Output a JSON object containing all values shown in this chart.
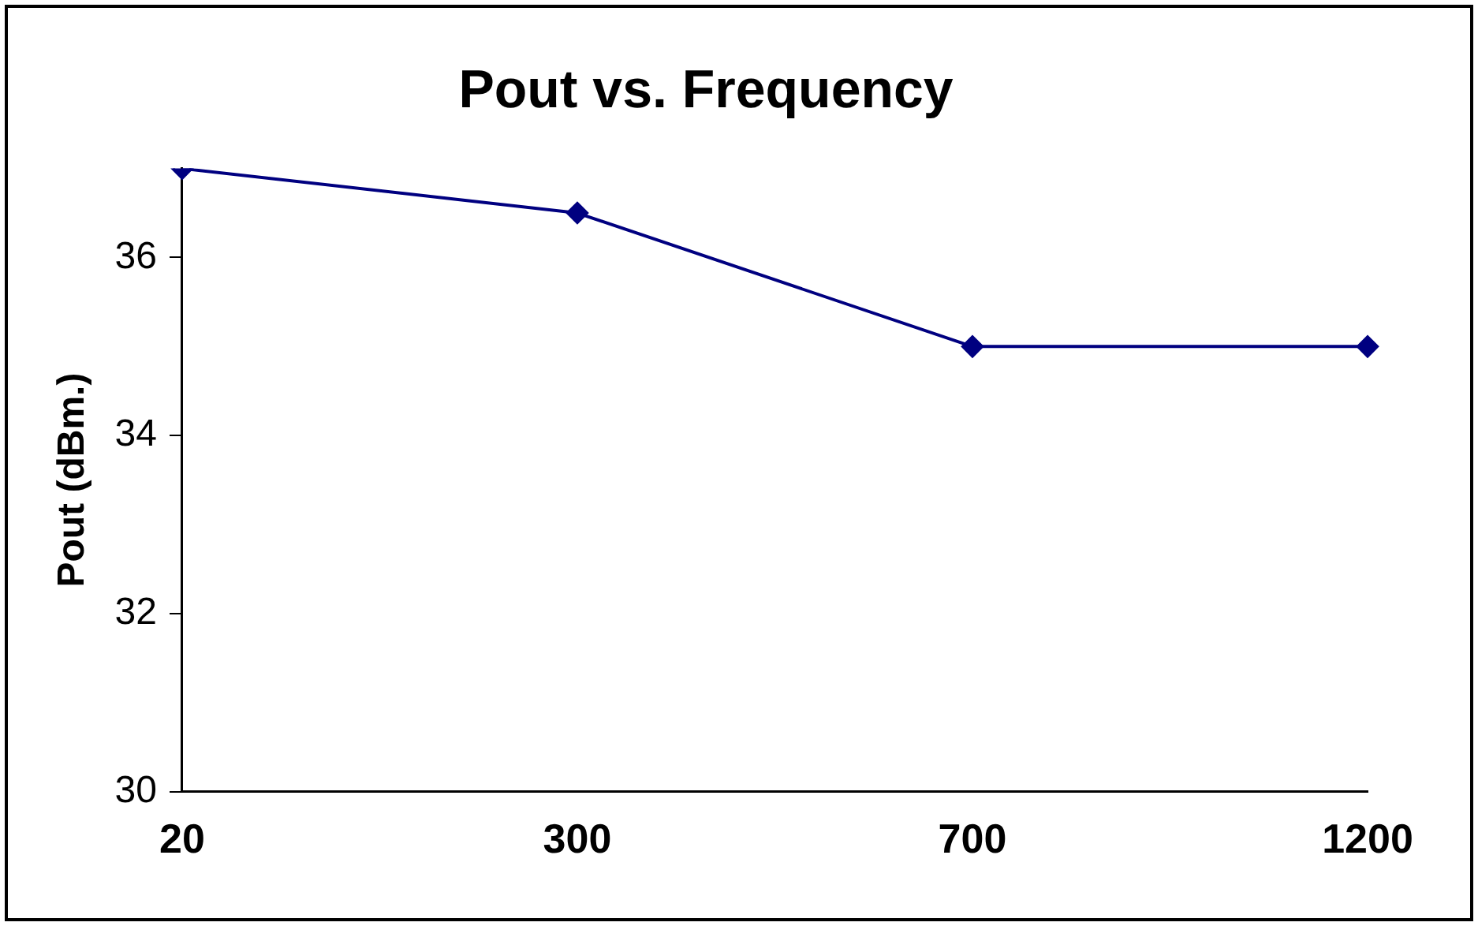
{
  "chart_data": {
    "type": "line",
    "title": "Pout vs. Frequency",
    "ylabel": "Pout (dBm.)",
    "categories": [
      "20",
      "300",
      "700",
      "1200"
    ],
    "series": [
      {
        "color": "#000080",
        "values": [
          37,
          36.5,
          35,
          35
        ]
      }
    ],
    "ylim": [
      30,
      37
    ],
    "yticks": [
      30,
      32,
      34,
      36
    ],
    "grid": false,
    "legend": false,
    "marker": "diamond",
    "line_style": "solid"
  }
}
